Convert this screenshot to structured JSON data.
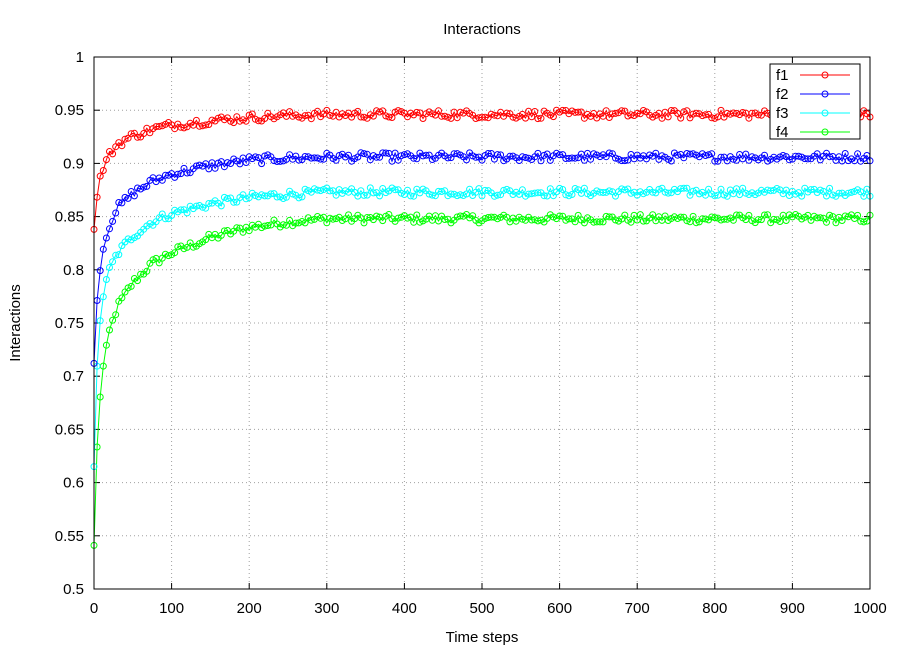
{
  "chart_data": {
    "type": "line",
    "title": "Interactions",
    "xlabel": "Time steps",
    "ylabel": "Interactions",
    "xlim": [
      0,
      1000
    ],
    "ylim": [
      0.5,
      1.0
    ],
    "x_ticks": [
      "0",
      "100",
      "200",
      "300",
      "400",
      "500",
      "600",
      "700",
      "800",
      "900",
      "1000"
    ],
    "y_ticks": [
      "0.5",
      "0.55",
      "0.6",
      "0.65",
      "0.7",
      "0.75",
      "0.8",
      "0.85",
      "0.9",
      "0.95",
      "1"
    ],
    "grid": true,
    "legend_position": "top-right",
    "marker": "open-circle",
    "x_step": 4,
    "series": [
      {
        "name": "f1",
        "color": "#ff0000",
        "x": [
          0,
          5,
          10,
          20,
          30,
          50,
          75,
          100,
          150,
          200,
          250,
          300,
          400,
          500,
          600,
          700,
          800,
          900,
          1000
        ],
        "values": [
          0.838,
          0.875,
          0.893,
          0.908,
          0.918,
          0.926,
          0.932,
          0.936,
          0.94,
          0.943,
          0.945,
          0.946,
          0.946,
          0.946,
          0.946,
          0.946,
          0.946,
          0.946,
          0.946
        ]
      },
      {
        "name": "f2",
        "color": "#0000ff",
        "x": [
          0,
          5,
          10,
          20,
          30,
          50,
          75,
          100,
          150,
          200,
          250,
          300,
          400,
          500,
          600,
          700,
          800,
          900,
          1000
        ],
        "values": [
          0.712,
          0.785,
          0.815,
          0.842,
          0.858,
          0.872,
          0.883,
          0.89,
          0.898,
          0.903,
          0.905,
          0.906,
          0.906,
          0.906,
          0.906,
          0.906,
          0.906,
          0.906,
          0.906
        ]
      },
      {
        "name": "f3",
        "color": "#00ffff",
        "x": [
          0,
          5,
          10,
          20,
          30,
          50,
          75,
          100,
          150,
          200,
          250,
          300,
          400,
          500,
          600,
          700,
          800,
          900,
          1000
        ],
        "values": [
          0.615,
          0.73,
          0.77,
          0.8,
          0.815,
          0.832,
          0.845,
          0.853,
          0.862,
          0.868,
          0.871,
          0.873,
          0.873,
          0.873,
          0.873,
          0.873,
          0.873,
          0.873,
          0.873
        ]
      },
      {
        "name": "f4",
        "color": "#00ff00",
        "x": [
          0,
          5,
          10,
          20,
          30,
          50,
          75,
          100,
          150,
          200,
          250,
          300,
          400,
          500,
          600,
          700,
          800,
          900,
          1000
        ],
        "values": [
          0.541,
          0.655,
          0.7,
          0.742,
          0.765,
          0.788,
          0.806,
          0.816,
          0.83,
          0.84,
          0.845,
          0.848,
          0.848,
          0.848,
          0.848,
          0.848,
          0.848,
          0.848,
          0.848
        ]
      }
    ]
  }
}
